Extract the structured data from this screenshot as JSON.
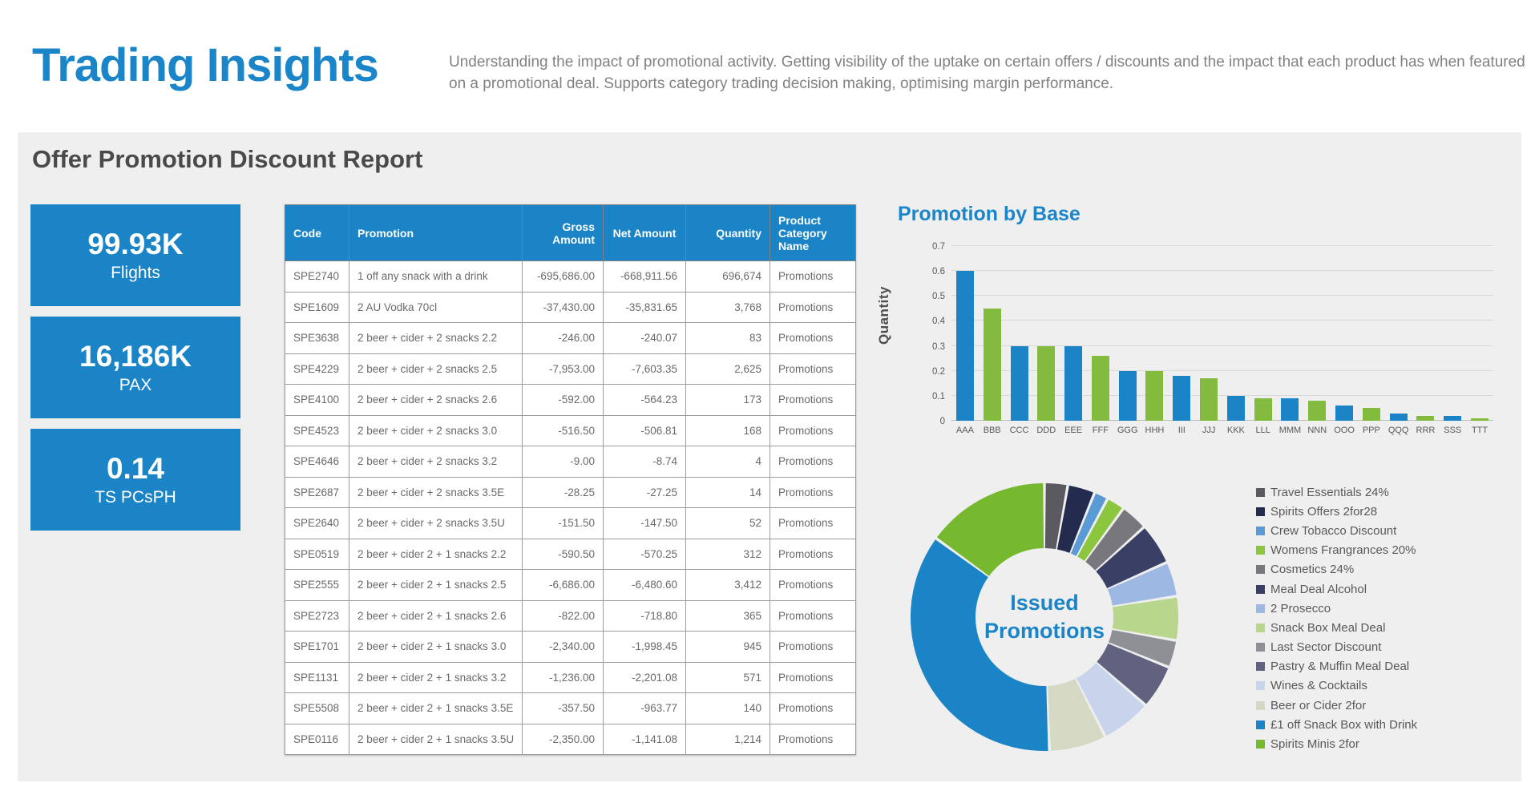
{
  "header": {
    "title": "Trading Insights",
    "description": "Understanding the impact of promotional activity. Getting visibility of the uptake on certain offers / discounts and the impact that each product has when featured on a promotional deal. Supports category trading decision making, optimising margin performance."
  },
  "report": {
    "title": "Offer Promotion Discount Report"
  },
  "kpi": {
    "cards": [
      {
        "value": "99.93K",
        "label": "Flights"
      },
      {
        "value": "16,186K",
        "label": "PAX"
      },
      {
        "value": "0.14",
        "label": "TS PCsPH"
      }
    ]
  },
  "table": {
    "columns": [
      "Code",
      "Promotion",
      "Gross Amount",
      "Net Amount",
      "Quantity",
      "Product Category Name"
    ],
    "rows": [
      [
        "SPE2740",
        "1 off any snack with a drink",
        "-695,686.00",
        "-668,911.56",
        "696,674",
        "Promotions"
      ],
      [
        "SPE1609",
        "2 AU Vodka 70cl",
        "-37,430.00",
        "-35,831.65",
        "3,768",
        "Promotions"
      ],
      [
        "SPE3638",
        "2 beer + cider + 2 snacks 2.2",
        "-246.00",
        "-240.07",
        "83",
        "Promotions"
      ],
      [
        "SPE4229",
        "2 beer + cider + 2 snacks 2.5",
        "-7,953.00",
        "-7,603.35",
        "2,625",
        "Promotions"
      ],
      [
        "SPE4100",
        "2 beer + cider + 2 snacks 2.6",
        "-592.00",
        "-564.23",
        "173",
        "Promotions"
      ],
      [
        "SPE4523",
        "2 beer + cider + 2 snacks 3.0",
        "-516.50",
        "-506.81",
        "168",
        "Promotions"
      ],
      [
        "SPE4646",
        "2 beer + cider + 2 snacks 3.2",
        "-9.00",
        "-8.74",
        "4",
        "Promotions"
      ],
      [
        "SPE2687",
        "2 beer + cider + 2 snacks 3.5E",
        "-28.25",
        "-27.25",
        "14",
        "Promotions"
      ],
      [
        "SPE2640",
        "2 beer + cider + 2 snacks 3.5U",
        "-151.50",
        "-147.50",
        "52",
        "Promotions"
      ],
      [
        "SPE0519",
        "2 beer + cider 2 + 1 snacks 2.2",
        "-590.50",
        "-570.25",
        "312",
        "Promotions"
      ],
      [
        "SPE2555",
        "2 beer + cider 2 + 1 snacks 2.5",
        "-6,686.00",
        "-6,480.60",
        "3,412",
        "Promotions"
      ],
      [
        "SPE2723",
        "2 beer + cider 2 + 1 snacks 2.6",
        "-822.00",
        "-718.80",
        "365",
        "Promotions"
      ],
      [
        "SPE1701",
        "2 beer + cider 2 + 1 snacks 3.0",
        "-2,340.00",
        "-1,998.45",
        "945",
        "Promotions"
      ],
      [
        "SPE1131",
        "2 beer + cider 2 + 1 snacks 3.2",
        "-1,236.00",
        "-2,201.08",
        "571",
        "Promotions"
      ],
      [
        "SPE5508",
        "2 beer + cider 2 + 1 snacks 3.5E",
        "-357.50",
        "-963.77",
        "140",
        "Promotions"
      ],
      [
        "SPE0116",
        "2 beer + cider 2 + 1 snacks 3.5U",
        "-2,350.00",
        "-1,141.08",
        "1,214",
        "Promotions"
      ]
    ]
  },
  "chart_data": [
    {
      "type": "bar",
      "title": "Promotion by Base",
      "xlabel": "",
      "ylabel": "Quantity",
      "ylim": [
        0,
        0.7
      ],
      "yticks": [
        0,
        0.1,
        0.2,
        0.3,
        0.4,
        0.5,
        0.6,
        0.7
      ],
      "grid": true,
      "categories": [
        "AAA",
        "BBB",
        "CCC",
        "DDD",
        "EEE",
        "FFF",
        "GGG",
        "HHH",
        "III",
        "JJJ",
        "KKK",
        "LLL",
        "MMM",
        "NNN",
        "OOO",
        "PPP",
        "QQQ",
        "RRR",
        "SSS",
        "TTT"
      ],
      "values": [
        0.6,
        0.45,
        0.3,
        0.3,
        0.3,
        0.26,
        0.2,
        0.2,
        0.18,
        0.17,
        0.1,
        0.09,
        0.09,
        0.08,
        0.06,
        0.05,
        0.03,
        0.02,
        0.02,
        0.01
      ],
      "series_colors": [
        "#1a84c6",
        "#82bb3d"
      ],
      "legend_position": "none"
    },
    {
      "type": "pie",
      "title": "Issued Promotions",
      "center_label": "Issued\nPromotions",
      "legend_position": "right",
      "slices": [
        {
          "label": "Travel Essentials 24%",
          "value": 2.8,
          "color": "#5a5a60"
        },
        {
          "label": "Spirits Offers 2for28",
          "value": 3.3,
          "color": "#232b4e"
        },
        {
          "label": "Crew Tobacco Discount",
          "value": 1.7,
          "color": "#5b9bd5"
        },
        {
          "label": "Womens Frangrances 20%",
          "value": 2.2,
          "color": "#8cc63f"
        },
        {
          "label": "Cosmetics 24%",
          "value": 3.3,
          "color": "#77777d"
        },
        {
          "label": "Meal Deal Alcohol",
          "value": 5.0,
          "color": "#3a4065"
        },
        {
          "label": "2 Prosecco",
          "value": 4.2,
          "color": "#9db8e2"
        },
        {
          "label": "Snack Box Meal Deal",
          "value": 5.3,
          "color": "#b8d68c"
        },
        {
          "label": "Last Sector Discount",
          "value": 3.3,
          "color": "#8f8f96"
        },
        {
          "label": "Pastry & Muffin Meal Deal",
          "value": 5.3,
          "color": "#616180"
        },
        {
          "label": "Wines & Cocktails",
          "value": 6.1,
          "color": "#c8d4ec"
        },
        {
          "label": "Beer or Cider 2for",
          "value": 6.9,
          "color": "#d5d8c3"
        },
        {
          "label": "£1 off Snack Box with Drink",
          "value": 35.6,
          "color": "#1a84c6"
        },
        {
          "label": "Spirits Minis 2for",
          "value": 15.0,
          "color": "#76b82e"
        }
      ]
    }
  ],
  "colors": {
    "accent_blue": "#1a84c6",
    "accent_green": "#82bb3d",
    "panel_background": "#efeff0"
  }
}
